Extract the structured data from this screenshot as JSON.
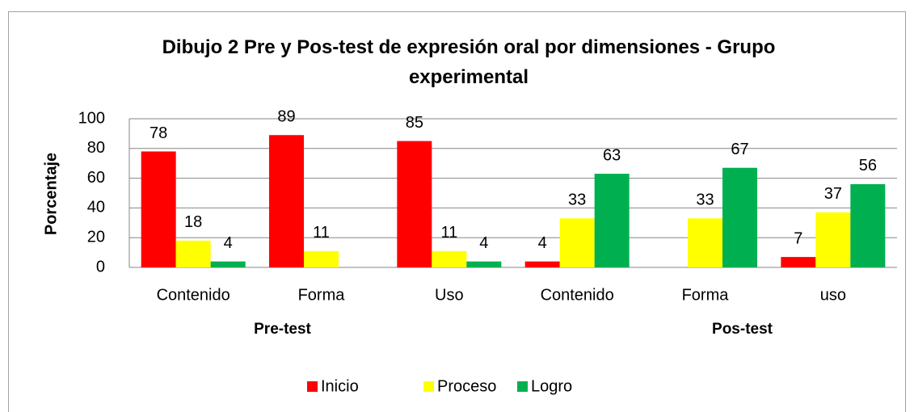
{
  "chart_data": {
    "type": "bar",
    "title": "Dibujo 2 Pre y Pos-test de expresión oral por dimensiones - Grupo experimental",
    "ylabel": "Porcentaje",
    "categories": [
      "Contenido",
      "Forma",
      "Uso",
      "Contenido",
      "Forma",
      "uso"
    ],
    "groups": [
      "Pre-test",
      "Pos-test"
    ],
    "series": [
      {
        "name": "Inicio",
        "color": "#ff0000",
        "values": [
          78,
          89,
          85,
          4,
          null,
          7
        ]
      },
      {
        "name": "Proceso",
        "color": "#ffff00",
        "values": [
          18,
          11,
          11,
          33,
          33,
          37
        ]
      },
      {
        "name": "Logro",
        "color": "#00b050",
        "values": [
          4,
          null,
          4,
          63,
          67,
          56
        ]
      }
    ],
    "ylim": [
      0,
      100
    ],
    "yticks": [
      0,
      20,
      40,
      60,
      80,
      100
    ],
    "grid": true,
    "legend": "bottom"
  }
}
